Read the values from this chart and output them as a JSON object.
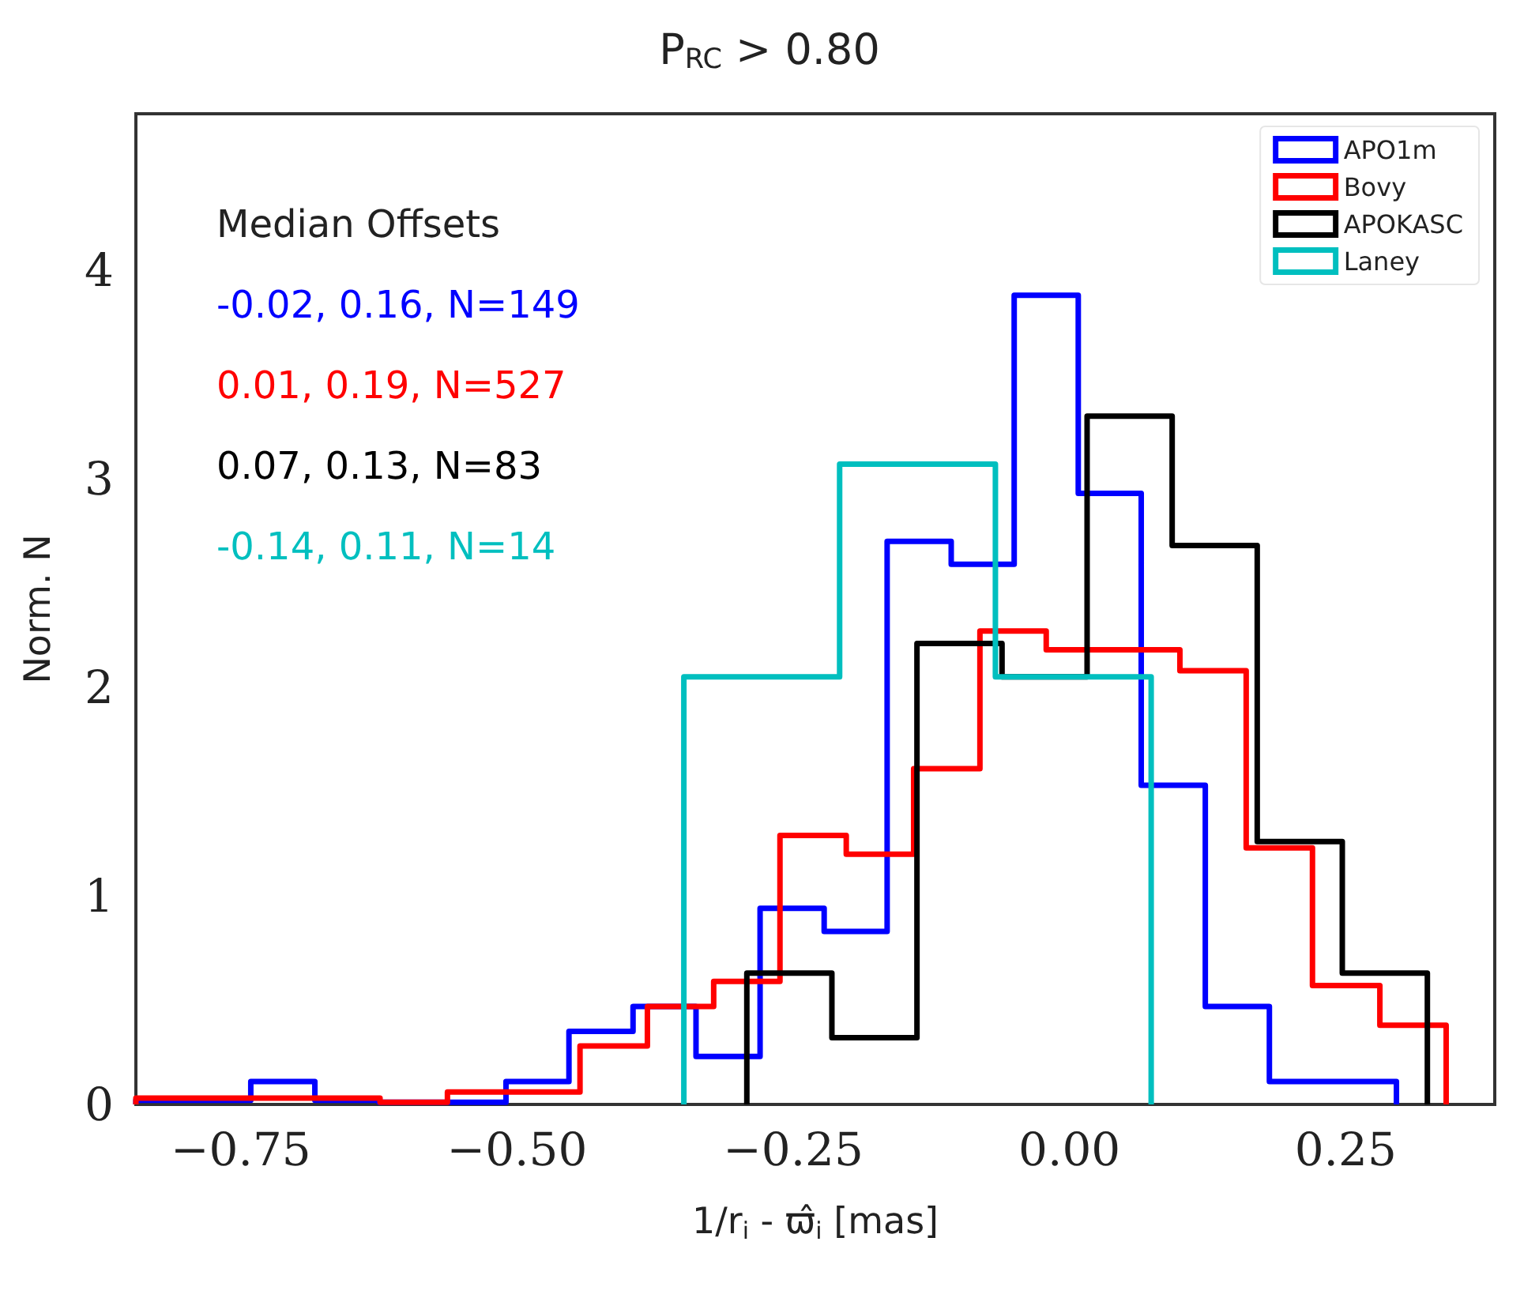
{
  "chart_data": {
    "type": "step",
    "title": "P$_{RC}$ > 0.80",
    "xlabel": "1/r$_{i}$ - ϖ̂$_{i}$ [mas]",
    "ylabel": "Norm. N",
    "xlim": [
      -0.845,
      0.385
    ],
    "ylim": [
      0,
      4.75
    ],
    "xticks": [
      {
        "value": -0.75,
        "label": "−0.75"
      },
      {
        "value": -0.5,
        "label": "−0.50"
      },
      {
        "value": -0.25,
        "label": "−0.25"
      },
      {
        "value": 0,
        "label": "0.00"
      },
      {
        "value": 0.25,
        "label": "0.25"
      }
    ],
    "yticks": [
      0,
      1,
      2,
      3,
      4
    ],
    "grid": false,
    "legend": "top right",
    "line_style": "solid",
    "marker": "none",
    "annotations": [
      "Median Offsets",
      "-0.02, 0.16, N=149",
      "0.01, 0.19, N=527",
      "0.07, 0.13, N=83",
      "-0.14, 0.11, N=14"
    ],
    "series": [
      {
        "name": "APO1m",
        "color": "#0000ff",
        "x": [
          -0.845,
          -0.845,
          -0.798,
          -0.741,
          -0.683,
          -0.625,
          -0.568,
          -0.51,
          -0.453,
          -0.395,
          -0.338,
          -0.28,
          -0.222,
          -0.165,
          -0.107,
          -0.05,
          0.008,
          0.065,
          0.123,
          0.181,
          0.238,
          0.296
        ],
        "values": [
          0,
          0.02,
          0.02,
          0.11,
          0.02,
          0.01,
          0.01,
          0.11,
          0.35,
          0.47,
          0.23,
          0.94,
          0.83,
          2.7,
          2.59,
          3.88,
          2.93,
          1.53,
          0.47,
          0.11,
          0.11,
          0
        ]
      },
      {
        "name": "Bovy",
        "color": "#ff0000",
        "x": [
          -0.845,
          -0.845,
          -0.804,
          -0.744,
          -0.684,
          -0.624,
          -0.563,
          -0.503,
          -0.443,
          -0.382,
          -0.322,
          -0.262,
          -0.202,
          -0.141,
          -0.081,
          -0.021,
          0.04,
          0.1,
          0.16,
          0.22,
          0.281,
          0.341
        ],
        "values": [
          0,
          0.03,
          0.03,
          0.03,
          0.03,
          0.01,
          0.06,
          0.06,
          0.28,
          0.47,
          0.59,
          1.29,
          1.2,
          1.61,
          2.27,
          2.18,
          2.18,
          2.08,
          1.23,
          0.57,
          0.38,
          0
        ]
      },
      {
        "name": "APOKASC",
        "color": "#000000",
        "x": [
          -0.292,
          -0.292,
          -0.215,
          -0.138,
          -0.061,
          0.016,
          0.093,
          0.17,
          0.247,
          0.324
        ],
        "values": [
          0,
          0.63,
          0.32,
          2.21,
          2.05,
          3.3,
          2.68,
          1.26,
          0.63,
          0
        ]
      },
      {
        "name": "Laney",
        "color": "#00bfbf",
        "x": [
          -0.349,
          -0.349,
          -0.208,
          -0.067,
          0.074
        ],
        "values": [
          0,
          2.05,
          3.07,
          2.05,
          0
        ]
      }
    ]
  }
}
